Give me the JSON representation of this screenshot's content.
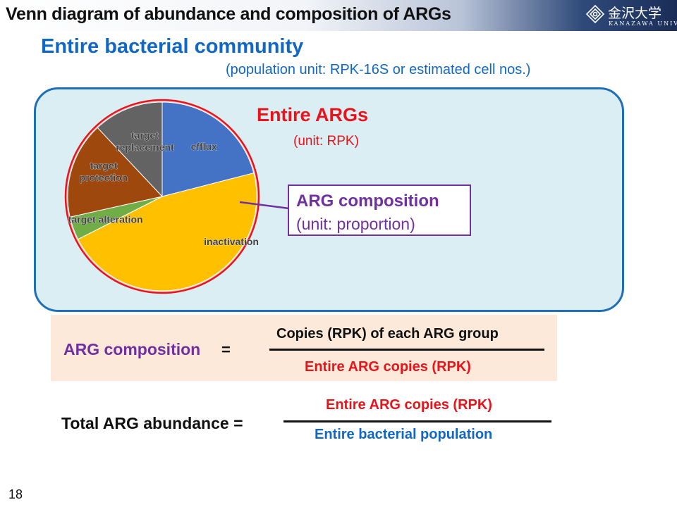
{
  "header": {
    "title": "Venn diagram of abundance and composition of ARGs",
    "logo_text_jp": "金沢大学",
    "logo_text_en": "KANAZAWA UNIVERSITY",
    "logo_icon": "university-emblem-icon"
  },
  "subtitle": "Entire bacterial community",
  "population_unit": "(population unit: RPK-16S or estimated cell nos.)",
  "venn": {
    "entire_args_label": "Entire ARGs",
    "entire_args_unit": "(unit: RPK)",
    "composition_label": "ARG composition",
    "composition_unit": "(unit: proportion)",
    "colors": {
      "community_fill": "#daeef3",
      "community_border": "#1f6fb8",
      "args_circle": "#e8141b",
      "composition_border": "#7030a0"
    }
  },
  "chart_data": {
    "type": "pie",
    "title": "",
    "slices": [
      {
        "label": "efflux",
        "value": 0.21,
        "color": "#4472c4"
      },
      {
        "label": "inactivation",
        "value": 0.465,
        "color": "#ffc000"
      },
      {
        "label": "target alteration",
        "value": 0.04,
        "color": "#70ad47"
      },
      {
        "label": "target protection",
        "value": 0.165,
        "color": "#9e480e"
      },
      {
        "label": "target replacement",
        "value": 0.12,
        "color": "#636363"
      }
    ]
  },
  "formula1": {
    "lhs": "ARG composition",
    "equals": "=",
    "numerator": "Copies (RPK) of each ARG group",
    "denominator": "Entire ARG copies (RPK)"
  },
  "formula2": {
    "lhs": "Total ARG abundance =",
    "numerator": "Entire ARG copies (RPK)",
    "denominator": "Entire bacterial population"
  },
  "page_number": "18"
}
